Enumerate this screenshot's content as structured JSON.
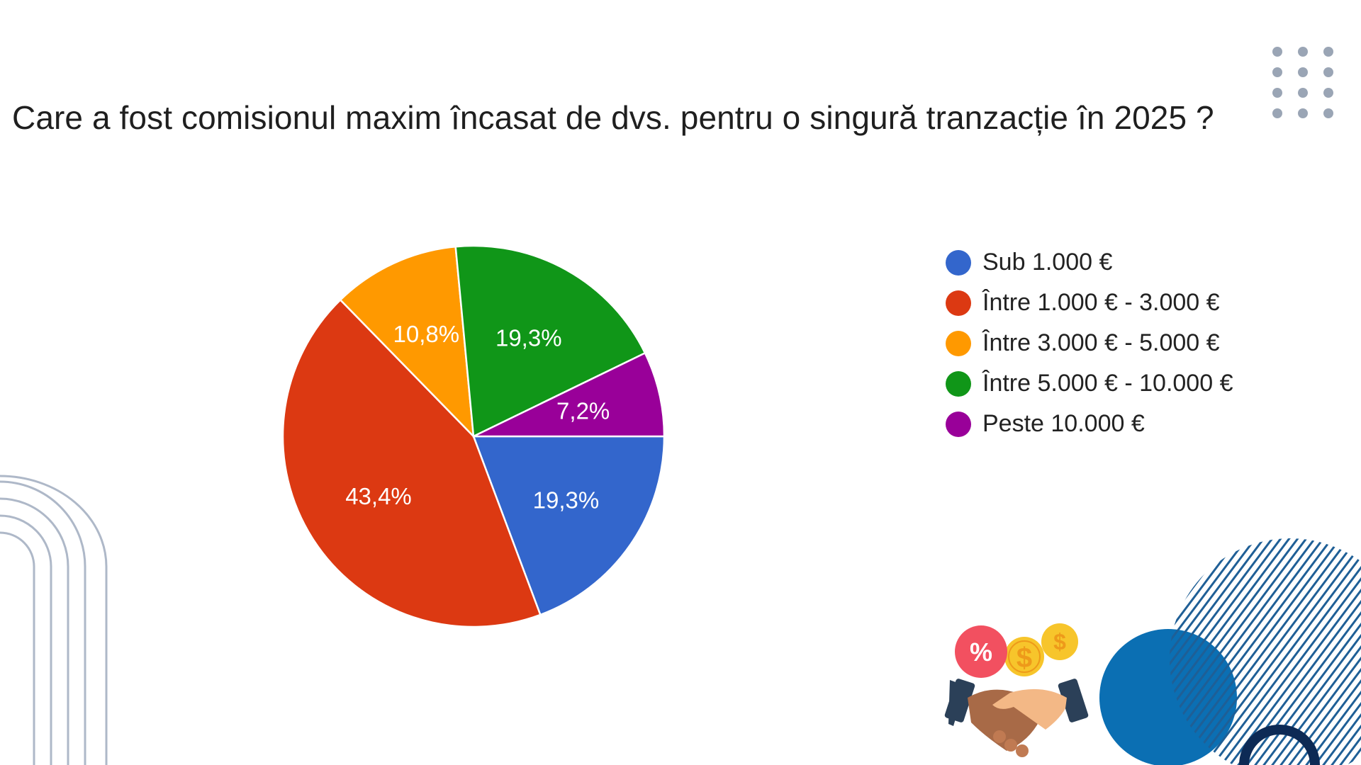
{
  "page": {
    "title": "Care a fost comisionul maxim încasat de dvs. pentru o singură tranzacție în 2025 ?"
  },
  "chart_data": {
    "type": "pie",
    "title": "Care a fost comisionul maxim încasat de dvs. pentru o singură tranzacție în 2025 ?",
    "legend_position": "right",
    "start_direction": "clockwise from 3 o'clock",
    "slices": [
      {
        "label": "Sub 1.000 €",
        "value": 19.3,
        "value_label": "19,3%",
        "color": "#3366cc"
      },
      {
        "label": "Între 1.000 € - 3.000 €",
        "value": 43.4,
        "value_label": "43,4%",
        "color": "#dc3912"
      },
      {
        "label": "Între 3.000 € - 5.000 €",
        "value": 10.8,
        "value_label": "10,8%",
        "color": "#ff9900"
      },
      {
        "label": "Între 5.000 € - 10.000 €",
        "value": 19.3,
        "value_label": "19,3%",
        "color": "#109618"
      },
      {
        "label": "Peste 10.000 €",
        "value": 7.2,
        "value_label": "7,2%",
        "color": "#990099"
      }
    ]
  },
  "decor": {
    "accent_blue": "#0b6fb3",
    "line_blue": "#1f5f96",
    "dot_gray": "#9aa5b5",
    "arch_gray": "#aeb8c8",
    "badge_red": "#f25060",
    "coin_gold": "#f7c52b",
    "percent_badge_text": "%",
    "coin_symbol": "$",
    "icons": [
      "dot-grid-decoration",
      "arch-lines-decoration",
      "handshake-money-icon",
      "blue-circle-decoration",
      "diagonal-lines-decoration"
    ]
  }
}
